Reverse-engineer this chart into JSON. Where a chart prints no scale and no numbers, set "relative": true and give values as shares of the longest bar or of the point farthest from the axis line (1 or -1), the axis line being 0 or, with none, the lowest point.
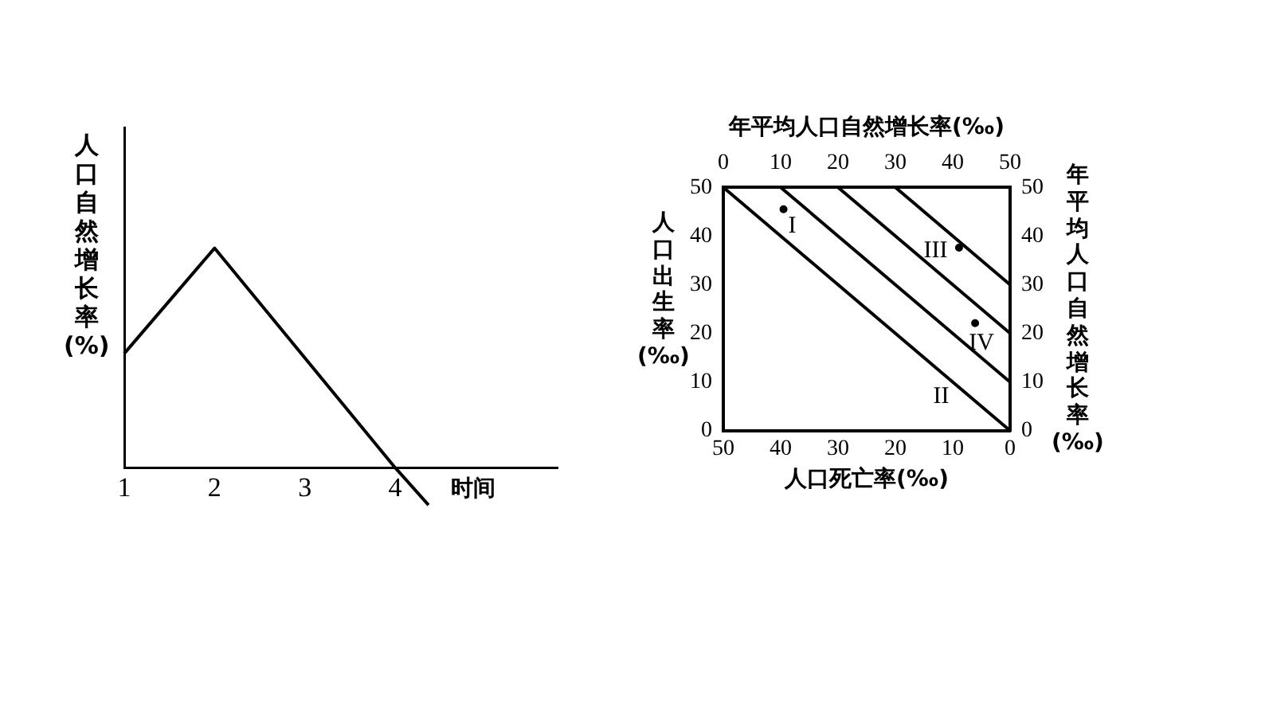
{
  "chart_data": [
    {
      "type": "line",
      "relative": true,
      "xlabel": "时间",
      "ylabel": "人口自然增长率(%)",
      "x": [
        1,
        2,
        4,
        4.37
      ],
      "values": [
        0.52,
        1,
        0,
        -0.17
      ],
      "color": "#000000",
      "xlim": [
        1,
        5.8
      ],
      "xticks": [
        1,
        2,
        3,
        4
      ],
      "grid": false,
      "legend": false,
      "marker": "none",
      "line_style": "solid"
    },
    {
      "type": "line",
      "xlabel": "人口死亡率(‰)",
      "x2label": "年平均人口自然增长率(‰)",
      "ylabel": "人口出生率(‰)",
      "y2label": "年平均人口自然增长率(‰)",
      "xlim": [
        50,
        0
      ],
      "xticks": [
        50,
        40,
        30,
        20,
        10,
        0
      ],
      "x2lim": [
        0,
        50
      ],
      "x2ticks": [
        0,
        10,
        20,
        30,
        40,
        50
      ],
      "ylim": [
        0,
        50
      ],
      "yticks": [
        0,
        10,
        20,
        30,
        40,
        50
      ],
      "y2lim": [
        0,
        50
      ],
      "y2ticks": [
        0,
        10,
        20,
        30,
        40,
        50
      ],
      "grid": false,
      "legend": false,
      "line_style": "solid",
      "series": [
        {
          "type": "line",
          "color": "#000000",
          "x": [
            50,
            0
          ],
          "values": [
            50,
            0
          ]
        },
        {
          "type": "line",
          "color": "#000000",
          "x": [
            40,
            0
          ],
          "values": [
            50,
            10
          ]
        },
        {
          "type": "line",
          "color": "#000000",
          "x": [
            30,
            0
          ],
          "values": [
            50,
            20
          ]
        },
        {
          "type": "line",
          "color": "#000000",
          "x": [
            20,
            0
          ],
          "values": [
            50,
            30
          ]
        },
        {
          "type": "scatter",
          "color": "#000000",
          "marker": "circle",
          "x": [
            39.5,
            8.9,
            6.1
          ],
          "values": [
            45.5,
            37.6,
            22.1
          ]
        }
      ],
      "annotations": [
        "I",
        "II",
        "III",
        "IV"
      ]
    }
  ]
}
